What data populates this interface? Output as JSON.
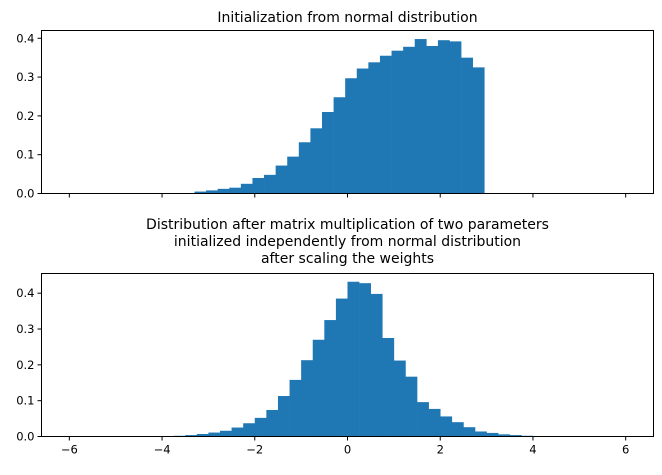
{
  "figure": {
    "shared_x_ticks": [
      "−6",
      "−4",
      "−2",
      "0",
      "2",
      "4",
      "6"
    ]
  },
  "chart_data": [
    {
      "type": "bar",
      "subtype": "histogram",
      "title": "Initialization from normal distribution",
      "xlabel": "",
      "ylabel": "",
      "xlim": [
        -6.6,
        6.6
      ],
      "ylim": [
        0,
        0.42
      ],
      "y_ticks": [
        "0.0",
        "0.1",
        "0.2",
        "0.3",
        "0.4"
      ],
      "y_tick_values": [
        0,
        0.1,
        0.2,
        0.3,
        0.4
      ],
      "x_tick_values": [
        -6,
        -4,
        -2,
        0,
        2,
        4,
        6
      ],
      "x_tick_labels_visible": false,
      "bar_color": "#1f77b4",
      "bins": [
        {
          "x0": -3.3,
          "x1": -3.05,
          "value": 0.005
        },
        {
          "x0": -3.05,
          "x1": -2.8,
          "value": 0.008
        },
        {
          "x0": -2.8,
          "x1": -2.55,
          "value": 0.012
        },
        {
          "x0": -2.55,
          "x1": -2.3,
          "value": 0.015
        },
        {
          "x0": -2.3,
          "x1": -2.05,
          "value": 0.025
        },
        {
          "x0": -2.05,
          "x1": -1.8,
          "value": 0.04
        },
        {
          "x0": -1.8,
          "x1": -1.55,
          "value": 0.048
        },
        {
          "x0": -1.55,
          "x1": -1.3,
          "value": 0.072
        },
        {
          "x0": -1.3,
          "x1": -1.05,
          "value": 0.095
        },
        {
          "x0": -1.05,
          "x1": -0.8,
          "value": 0.132
        },
        {
          "x0": -0.8,
          "x1": -0.55,
          "value": 0.168
        },
        {
          "x0": -0.55,
          "x1": -0.3,
          "value": 0.21
        },
        {
          "x0": -0.3,
          "x1": -0.05,
          "value": 0.248
        },
        {
          "x0": -0.05,
          "x1": 0.2,
          "value": 0.297
        },
        {
          "x0": 0.2,
          "x1": 0.45,
          "value": 0.322
        },
        {
          "x0": 0.45,
          "x1": 0.7,
          "value": 0.338
        },
        {
          "x0": 0.7,
          "x1": 0.95,
          "value": 0.355
        },
        {
          "x0": 0.95,
          "x1": 1.2,
          "value": 0.368
        },
        {
          "x0": 1.2,
          "x1": 1.45,
          "value": 0.378
        },
        {
          "x0": 1.45,
          "x1": 1.7,
          "value": 0.398
        },
        {
          "x0": 1.7,
          "x1": 1.95,
          "value": 0.38
        },
        {
          "x0": 1.95,
          "x1": 2.2,
          "value": 0.395
        },
        {
          "x0": 2.2,
          "x1": 2.45,
          "value": 0.392
        },
        {
          "x0": 2.45,
          "x1": 2.7,
          "value": 0.35
        },
        {
          "x0": 2.7,
          "x1": 2.95,
          "value": 0.325
        }
      ]
    },
    {
      "type": "bar",
      "subtype": "histogram",
      "title": "Distribution after matrix multiplication of two parameters initialized independently from normal distribution after scaling the weights",
      "title_lines": [
        "Distribution after matrix multiplication of two parameters",
        "initialized independently from normal distribution",
        "after scaling the weights"
      ],
      "xlabel": "",
      "ylabel": "",
      "xlim": [
        -6.6,
        6.6
      ],
      "ylim": [
        0,
        0.455
      ],
      "y_ticks": [
        "0.0",
        "0.1",
        "0.2",
        "0.3",
        "0.4"
      ],
      "y_tick_values": [
        0,
        0.1,
        0.2,
        0.3,
        0.4
      ],
      "x_tick_values": [
        -6,
        -4,
        -2,
        0,
        2,
        4,
        6
      ],
      "x_tick_labels_visible": true,
      "bar_color": "#1f77b4",
      "bins": [
        {
          "x0": -6.0,
          "x1": -5.75,
          "value": 0.0005
        },
        {
          "x0": -3.75,
          "x1": -3.5,
          "value": 0.002
        },
        {
          "x0": -3.5,
          "x1": -3.25,
          "value": 0.004
        },
        {
          "x0": -3.25,
          "x1": -3.0,
          "value": 0.007
        },
        {
          "x0": -3.0,
          "x1": -2.75,
          "value": 0.011
        },
        {
          "x0": -2.75,
          "x1": -2.5,
          "value": 0.016
        },
        {
          "x0": -2.5,
          "x1": -2.25,
          "value": 0.025
        },
        {
          "x0": -2.25,
          "x1": -2.0,
          "value": 0.037
        },
        {
          "x0": -2.0,
          "x1": -1.75,
          "value": 0.052
        },
        {
          "x0": -1.75,
          "x1": -1.5,
          "value": 0.074
        },
        {
          "x0": -1.5,
          "x1": -1.25,
          "value": 0.113
        },
        {
          "x0": -1.25,
          "x1": -1.0,
          "value": 0.158
        },
        {
          "x0": -1.0,
          "x1": -0.75,
          "value": 0.213
        },
        {
          "x0": -0.75,
          "x1": -0.5,
          "value": 0.27
        },
        {
          "x0": -0.5,
          "x1": -0.25,
          "value": 0.325
        },
        {
          "x0": -0.25,
          "x1": 0.0,
          "value": 0.385
        },
        {
          "x0": 0.0,
          "x1": 0.25,
          "value": 0.432
        },
        {
          "x0": 0.25,
          "x1": 0.5,
          "value": 0.428
        },
        {
          "x0": 0.5,
          "x1": 0.75,
          "value": 0.398
        },
        {
          "x0": 0.75,
          "x1": 1.0,
          "value": 0.275
        },
        {
          "x0": 1.0,
          "x1": 1.25,
          "value": 0.212
        },
        {
          "x0": 1.25,
          "x1": 1.5,
          "value": 0.167
        },
        {
          "x0": 1.5,
          "x1": 1.75,
          "value": 0.096
        },
        {
          "x0": 1.75,
          "x1": 2.0,
          "value": 0.077
        },
        {
          "x0": 2.0,
          "x1": 2.25,
          "value": 0.056
        },
        {
          "x0": 2.25,
          "x1": 2.5,
          "value": 0.04
        },
        {
          "x0": 2.5,
          "x1": 2.75,
          "value": 0.026
        },
        {
          "x0": 2.75,
          "x1": 3.0,
          "value": 0.014
        },
        {
          "x0": 3.0,
          "x1": 3.25,
          "value": 0.01
        },
        {
          "x0": 3.25,
          "x1": 3.5,
          "value": 0.006
        },
        {
          "x0": 3.5,
          "x1": 3.75,
          "value": 0.004
        },
        {
          "x0": 3.75,
          "x1": 4.0,
          "value": 0.002
        },
        {
          "x0": 5.5,
          "x1": 5.75,
          "value": 0.0005
        }
      ]
    }
  ]
}
